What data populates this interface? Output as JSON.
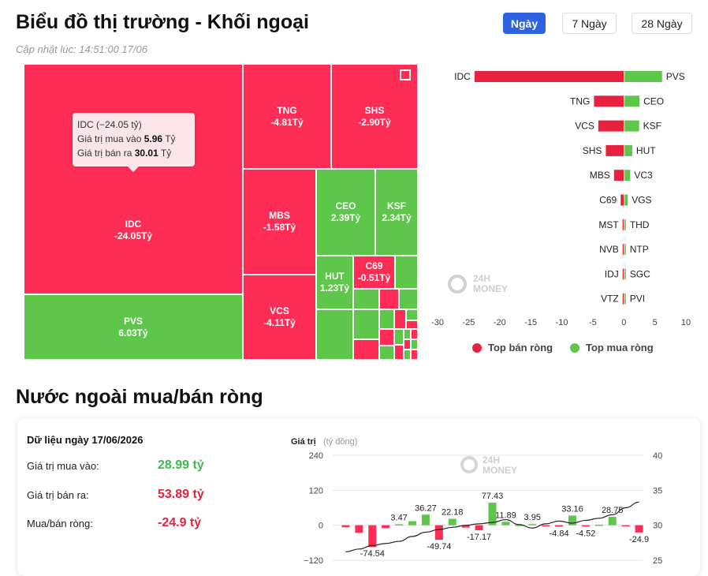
{
  "header": {
    "title": "Biểu đồ thị trường - Khối ngoại",
    "updated": "Cập nhật lúc: 14:51:00 17/06",
    "periods": [
      "Ngày",
      "7 Ngày",
      "28 Ngày"
    ],
    "active_period": "Ngày"
  },
  "treemap": {
    "tiles": [
      {
        "code": "IDC",
        "label": "-24.05Tỷ",
        "value": -24.05
      },
      {
        "code": "PVS",
        "label": "6.03Tỷ",
        "value": 6.03
      },
      {
        "code": "TNG",
        "label": "-4.81Tỷ",
        "value": -4.81
      },
      {
        "code": "SHS",
        "label": "-2.90Tỷ",
        "value": -2.9
      },
      {
        "code": "MBS",
        "label": "-1.58Tỷ",
        "value": -1.58
      },
      {
        "code": "VCS",
        "label": "-4.11Tỷ",
        "value": -4.11
      },
      {
        "code": "CEO",
        "label": "2.39Tỷ",
        "value": 2.39
      },
      {
        "code": "KSF",
        "label": "2.34Tỷ",
        "value": 2.34
      },
      {
        "code": "HUT",
        "label": "1.23Tỷ",
        "value": 1.23
      },
      {
        "code": "C69",
        "label": "-0.51Tỷ",
        "value": -0.51
      }
    ],
    "tooltip": {
      "line1": "IDC (−24.05 tỷ)",
      "buy_label": "Giá trị mua vào",
      "buy_value": "5.96",
      "sell_label": "Giá trị bán ra",
      "sell_value": "30.01",
      "unit": "Tỷ"
    },
    "colors": {
      "sell": "#ff2d55",
      "buy": "#5ec64a"
    }
  },
  "chart_data": [
    {
      "type": "bar",
      "orientation": "horizontal",
      "sell_categories": [
        "IDC",
        "TNG",
        "VCS",
        "SHS",
        "MBS",
        "C69",
        "MST",
        "NVB",
        "IDJ",
        "VTZ"
      ],
      "sell_values": [
        -24.05,
        -4.81,
        -4.11,
        -2.9,
        -1.58,
        -0.51,
        -0.2,
        -0.1,
        -0.05,
        -0.02
      ],
      "buy_categories": [
        "PVS",
        "CEO",
        "KSF",
        "HUT",
        "VC3",
        "VGS",
        "THD",
        "NTP",
        "SGC",
        "PVI"
      ],
      "buy_values": [
        6.03,
        2.39,
        2.34,
        1.23,
        0.9,
        0.5,
        0.2,
        0.1,
        0.05,
        0.02
      ],
      "xticks": [
        "-30",
        "-25",
        "-20",
        "-15",
        "-10",
        "-5",
        "0",
        "5",
        "10"
      ],
      "xlim": [
        -30,
        10
      ],
      "legend": [
        "Top bán ròng",
        "Top mua ròng"
      ]
    },
    {
      "type": "bar+line",
      "ylabel": "Giá trị",
      "ylabel_unit": "(tỷ đồng)",
      "left_ticks": [
        "240",
        "120",
        "0",
        "−120"
      ],
      "right_ticks": [
        "400",
        "350",
        "300",
        "250"
      ],
      "ylim_left": [
        -120,
        240
      ],
      "ylim_right": [
        250,
        400
      ],
      "values": [
        -7,
        -26,
        -74.54,
        -10,
        3.47,
        14,
        36.27,
        -49.74,
        22.18,
        -8,
        -17.17,
        77.43,
        11.89,
        1,
        3.95,
        -4,
        -4.84,
        33.16,
        -4.52,
        2,
        28.75,
        -2,
        -24.9
      ],
      "value_labels": {
        "2": "-74.54",
        "4": "3.47",
        "6": "36.27",
        "7": "-49.74",
        "8": "22.18",
        "10": "-17.17",
        "11": "77.43",
        "12": "11.89",
        "14": "3.95",
        "16": "-4.84",
        "17": "33.16",
        "18": "-4.52",
        "20": "28.75",
        "22": "-24.9"
      },
      "line": [
        262,
        266,
        271,
        274,
        277,
        284,
        290,
        294,
        297,
        300,
        302,
        304,
        308,
        301,
        296,
        302,
        306,
        303,
        307,
        310,
        315,
        325,
        333
      ]
    }
  ],
  "watermark": {
    "line1": "24H",
    "line2": "MONEY"
  },
  "section2": {
    "title": "Nước ngoài mua/bán ròng",
    "date_line": "Dữ liệu ngày 17/06/2026",
    "buy_label": "Giá trị mua vào:",
    "buy_value": "28.99 tỷ",
    "sell_label": "Giá trị bán ra:",
    "sell_value": "53.89 tỷ",
    "net_label": "Mua/bán ròng:",
    "net_value": "-24.9 tỷ",
    "colors": {
      "positive": "#3dba4e",
      "negative": "#e8213f"
    }
  }
}
